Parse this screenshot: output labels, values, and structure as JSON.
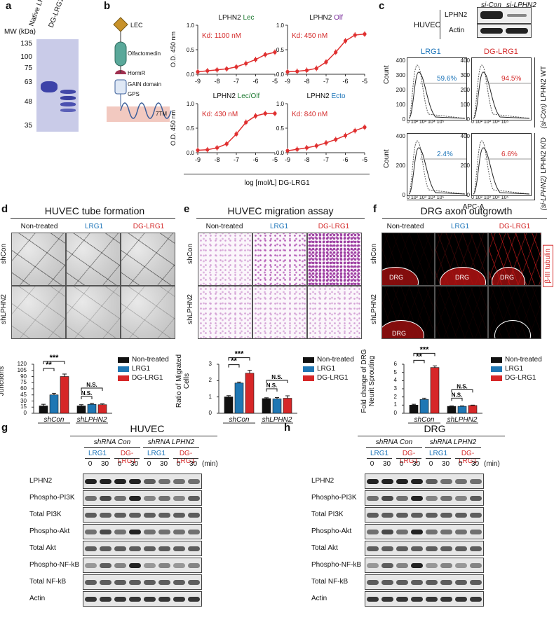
{
  "labels": {
    "a": "a",
    "b": "b",
    "c": "c",
    "d": "d",
    "e": "e",
    "f": "f",
    "g": "g",
    "h": "h"
  },
  "panel_a": {
    "ylabel": "MW (kDa)",
    "ticks": [
      "135",
      "100",
      "75",
      "63",
      "48",
      "35"
    ],
    "lanes": [
      "Native LRG1",
      "DG-LRG1"
    ]
  },
  "panel_b": {
    "domains": [
      "LEC",
      "Olfactomedin",
      "HormR",
      "GAIN domain",
      "GPS",
      "7TM"
    ],
    "ylabel": "O.D. 450 nm",
    "xlabel": "log [mol/L]  DG-LRG1",
    "xticks": [
      "-9",
      "-8",
      "-7",
      "-6",
      "-5"
    ],
    "yticks": [
      "0.0",
      "0.5",
      "1.0"
    ],
    "plots": [
      {
        "prefix": "LPHN2 ",
        "name": "Lec",
        "kd": "Kd: 1100 nM"
      },
      {
        "prefix": "LPHN2 ",
        "name": "Olf",
        "kd": "Kd: 450 nM"
      },
      {
        "prefix": "LPHN2 ",
        "name": "Lec/Olf",
        "kd": "Kd: 430 nM"
      },
      {
        "prefix": "LPHN2 ",
        "name": "Ecto",
        "kd": "Kd: 840 nM"
      }
    ]
  },
  "panel_c": {
    "header": [
      "si-Con",
      "si-LPHN2"
    ],
    "cell": "HUVEC",
    "proteins": [
      "LPHN2",
      "Actin"
    ],
    "col_titles": [
      "LRG1",
      "DG-LRG1"
    ],
    "ylabel": "Count",
    "xlabel": "APC-A",
    "pct": [
      "59.6%",
      "94.5%",
      "2.4%",
      "6.6%"
    ],
    "row_labels": [
      "LPHN2 WT",
      "(si-Con)",
      "LPHN2 K/D",
      "(si-LPHN2)"
    ],
    "yticks_top": [
      "0",
      "100",
      "200",
      "300",
      "400"
    ],
    "xticks": "0 10² 10³ 10⁴ 10⁵"
  },
  "panel_d": {
    "title": "HUVEC tube formation",
    "cols": [
      "Non-treated",
      "LRG1",
      "DG-LRG1"
    ],
    "rows": [
      "shCon",
      "shLPHN2"
    ],
    "ylabel": "Number of Master Junctions"
  },
  "panel_e": {
    "title": "HUVEC migration assay",
    "cols": [
      "Non-treated",
      "LRG1",
      "DG-LRG1"
    ],
    "rows": [
      "shCon",
      "shLPHN2"
    ],
    "ylabel": "Ratio of Migrated Cells"
  },
  "panel_f": {
    "title": "DRG axon outgrowth",
    "cols": [
      "Non-treated",
      "LRG1",
      "DG-LRG1"
    ],
    "rows": [
      "shCon",
      "shLPHN2"
    ],
    "stain": "β-III tubulin",
    "drg": "DRG",
    "ylabel": "Fold change of DRG Neurit Sprouting"
  },
  "legend": [
    "Non-treated",
    "LRG1",
    "DG-LRG1"
  ],
  "colors": {
    "nontreated": "#111111",
    "lrg1": "#1f77b4",
    "dglrg1": "#d62728",
    "curve": "#e03030"
  },
  "bars_d": {
    "groups": [
      "shCon",
      "shLPHN2"
    ],
    "yticks": [
      "0",
      "15",
      "30",
      "45",
      "60",
      "75",
      "90",
      "105",
      "120"
    ],
    "ymax": 120,
    "values": [
      [
        18,
        45,
        90
      ],
      [
        18,
        22,
        21
      ]
    ],
    "errors": [
      [
        4,
        4,
        6
      ],
      [
        3,
        2,
        2
      ]
    ],
    "sig": [
      "**",
      "***",
      "N.S.",
      "N.S."
    ]
  },
  "bars_e": {
    "groups": [
      "shCon",
      "shLPHN2"
    ],
    "yticks": [
      "0",
      "1",
      "2",
      "3"
    ],
    "ymax": 3,
    "values": [
      [
        1.0,
        1.85,
        2.45
      ],
      [
        0.9,
        0.88,
        0.92
      ]
    ],
    "errors": [
      [
        0.08,
        0.06,
        0.18
      ],
      [
        0.05,
        0.08,
        0.15
      ]
    ],
    "sig": [
      "**",
      "***",
      "N.S.",
      "N.S."
    ]
  },
  "bars_f": {
    "groups": [
      "shCon",
      "shLPHN2"
    ],
    "yticks": [
      "0",
      "1",
      "2",
      "3",
      "4",
      "5",
      "6"
    ],
    "ymax": 6,
    "values": [
      [
        1.0,
        1.7,
        5.6
      ],
      [
        0.85,
        0.85,
        0.95
      ]
    ],
    "errors": [
      [
        0.1,
        0.15,
        0.2
      ],
      [
        0.05,
        0.05,
        0.05
      ]
    ],
    "sig": [
      "**",
      "***",
      "N.S.",
      "N.S."
    ]
  },
  "panel_g": {
    "title": "HUVEC",
    "groups": [
      "shRNA Con",
      "shRNA LPHN2"
    ],
    "treat": [
      "LRG1",
      "DG-LRG1",
      "LRG1",
      "DG-LRG1"
    ],
    "times": [
      "0",
      "30",
      "0",
      "30",
      "0",
      "30",
      "0",
      "30"
    ],
    "unit": "(min)",
    "rows": [
      "LPHN2",
      "Phospho-PI3K",
      "Total PI3K",
      "Phospho-Akt",
      "Total Akt",
      "Phospho-NF-kB",
      "Total NF-kB",
      "Actin"
    ]
  },
  "panel_h": {
    "title": "DRG",
    "groups": [
      "shRNA Con",
      "shRNA LPHN2"
    ],
    "treat": [
      "LRG1",
      "DG-LRG1",
      "LRG1",
      "DG-LRG1"
    ],
    "times": [
      "0",
      "30",
      "0",
      "30",
      "0",
      "30",
      "0",
      "30"
    ],
    "unit": "(min)",
    "rows": [
      "LPHN2",
      "Phospho-PI3K",
      "Total PI3K",
      "Phospho-Akt",
      "Total Akt",
      "Phospho-NF-kB",
      "Total NF-kB",
      "Actin"
    ]
  },
  "curves": [
    {
      "x": [
        -9,
        -8.5,
        -8,
        -7.5,
        -7,
        -6.5,
        -6,
        -5.5,
        -5
      ],
      "y": [
        0.05,
        0.07,
        0.09,
        0.11,
        0.15,
        0.22,
        0.3,
        0.4,
        0.45
      ]
    },
    {
      "x": [
        -9,
        -8.5,
        -8,
        -7.5,
        -7,
        -6.5,
        -6,
        -5.5,
        -5
      ],
      "y": [
        0.05,
        0.06,
        0.08,
        0.12,
        0.25,
        0.45,
        0.68,
        0.8,
        0.82
      ]
    },
    {
      "x": [
        -9,
        -8.5,
        -8,
        -7.5,
        -7,
        -6.5,
        -6,
        -5.5,
        -5
      ],
      "y": [
        0.05,
        0.06,
        0.1,
        0.18,
        0.38,
        0.62,
        0.75,
        0.8,
        0.8
      ]
    },
    {
      "x": [
        -9,
        -8.5,
        -8,
        -7.5,
        -7,
        -6.5,
        -6,
        -5.5,
        -5
      ],
      "y": [
        0.04,
        0.07,
        0.1,
        0.14,
        0.2,
        0.27,
        0.35,
        0.45,
        0.52
      ]
    }
  ]
}
